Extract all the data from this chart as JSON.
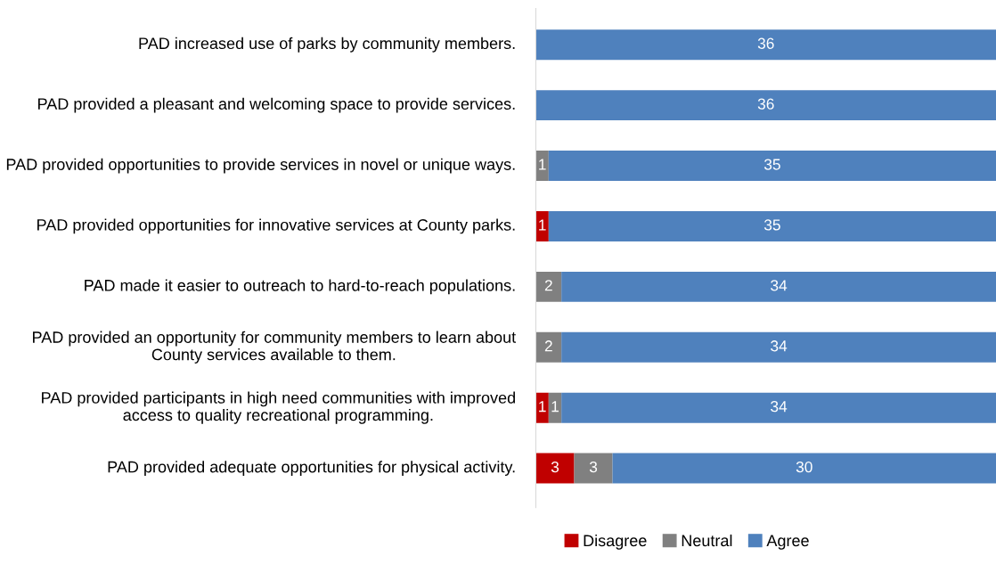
{
  "chart_data": {
    "type": "bar",
    "orientation": "horizontal",
    "stacked": true,
    "categories": [
      "PAD increased use of parks by community members.",
      "PAD provided a pleasant and welcoming space to provide services.",
      "PAD provided opportunities to provide services in novel or unique ways.",
      "PAD provided opportunities for innovative services at County parks.",
      "PAD made it easier to outreach to hard-to-reach populations.",
      "PAD provided an opportunity for community members to learn about County services available to them.",
      "PAD provided participants in high need communities with improved access to quality recreational programming.",
      "PAD provided adequate opportunities for physical activity."
    ],
    "series": [
      {
        "name": "Disagree",
        "color": "#c00000",
        "values": [
          null,
          null,
          null,
          1,
          null,
          null,
          1,
          3
        ]
      },
      {
        "name": "Neutral",
        "color": "#808080",
        "values": [
          null,
          null,
          1,
          null,
          2,
          2,
          1,
          3
        ]
      },
      {
        "name": "Agree",
        "color": "#4f81bd",
        "values": [
          36,
          36,
          35,
          35,
          34,
          34,
          34,
          30
        ]
      }
    ],
    "xlim": [
      0,
      36
    ],
    "tick_labels": "y",
    "data_labels": true,
    "legend": "bottom"
  }
}
